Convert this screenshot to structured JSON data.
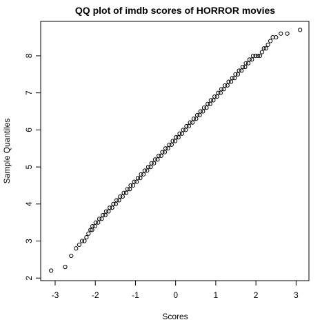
{
  "chart_data": {
    "type": "scatter",
    "title": "QQ plot of imdb scores of HORROR movies",
    "xlabel": "Scores",
    "ylabel": "Sample Quantiles",
    "color": "#000000",
    "xlim": [
      -3.36,
      3.32
    ],
    "ylim": [
      1.93,
      8.93
    ],
    "xticks": [
      -3,
      -2,
      -1,
      0,
      1,
      2,
      3
    ],
    "yticks": [
      2,
      3,
      4,
      5,
      6,
      7,
      8
    ],
    "x": [
      -3.1,
      -2.75,
      -2.6,
      -2.48,
      -2.4,
      -2.33,
      -2.27,
      -2.22,
      -2.17,
      -2.12,
      -2.08,
      -2.07,
      -2.01,
      -1.99,
      -1.93,
      -1.9,
      -1.84,
      -1.81,
      -1.75,
      -1.73,
      -1.67,
      -1.64,
      -1.58,
      -1.55,
      -1.49,
      -1.47,
      -1.41,
      -1.38,
      -1.32,
      -1.29,
      -1.23,
      -1.2,
      -1.14,
      -1.12,
      -1.06,
      -1.03,
      -0.97,
      -0.94,
      -0.88,
      -0.86,
      -0.8,
      -0.77,
      -0.71,
      -0.68,
      -0.62,
      -0.6,
      -0.54,
      -0.51,
      -0.45,
      -0.42,
      -0.36,
      -0.33,
      -0.27,
      -0.25,
      -0.19,
      -0.16,
      -0.1,
      -0.07,
      -0.01,
      0.01,
      0.07,
      0.1,
      0.16,
      0.19,
      0.25,
      0.27,
      0.33,
      0.36,
      0.42,
      0.45,
      0.51,
      0.54,
      0.6,
      0.62,
      0.68,
      0.71,
      0.77,
      0.8,
      0.86,
      0.88,
      0.94,
      0.97,
      1.03,
      1.06,
      1.12,
      1.14,
      1.2,
      1.23,
      1.29,
      1.32,
      1.38,
      1.41,
      1.47,
      1.49,
      1.55,
      1.58,
      1.64,
      1.67,
      1.73,
      1.75,
      1.81,
      1.84,
      1.9,
      1.93,
      1.99,
      2.05,
      2.1,
      2.15,
      2.2,
      2.25,
      2.3,
      2.36,
      2.42,
      2.5,
      2.62,
      2.78,
      3.1
    ],
    "y": [
      2.2,
      2.3,
      2.6,
      2.8,
      2.9,
      3.0,
      3.0,
      3.1,
      3.2,
      3.3,
      3.3,
      3.4,
      3.4,
      3.5,
      3.5,
      3.6,
      3.6,
      3.7,
      3.7,
      3.8,
      3.8,
      3.9,
      3.9,
      4.0,
      4.0,
      4.1,
      4.1,
      4.2,
      4.2,
      4.3,
      4.3,
      4.4,
      4.4,
      4.5,
      4.5,
      4.6,
      4.6,
      4.7,
      4.7,
      4.8,
      4.8,
      4.9,
      4.9,
      5.0,
      5.0,
      5.1,
      5.1,
      5.2,
      5.2,
      5.3,
      5.3,
      5.4,
      5.4,
      5.5,
      5.5,
      5.6,
      5.6,
      5.7,
      5.7,
      5.8,
      5.8,
      5.9,
      5.9,
      6.0,
      6.0,
      6.1,
      6.1,
      6.2,
      6.2,
      6.3,
      6.3,
      6.4,
      6.4,
      6.5,
      6.5,
      6.6,
      6.6,
      6.7,
      6.7,
      6.8,
      6.8,
      6.9,
      6.9,
      7.0,
      7.0,
      7.1,
      7.1,
      7.2,
      7.2,
      7.3,
      7.3,
      7.4,
      7.4,
      7.5,
      7.5,
      7.6,
      7.6,
      7.7,
      7.7,
      7.8,
      7.8,
      7.9,
      7.9,
      8.0,
      8.0,
      8.0,
      8.0,
      8.1,
      8.2,
      8.2,
      8.3,
      8.4,
      8.5,
      8.5,
      8.6,
      8.6,
      8.7
    ]
  }
}
